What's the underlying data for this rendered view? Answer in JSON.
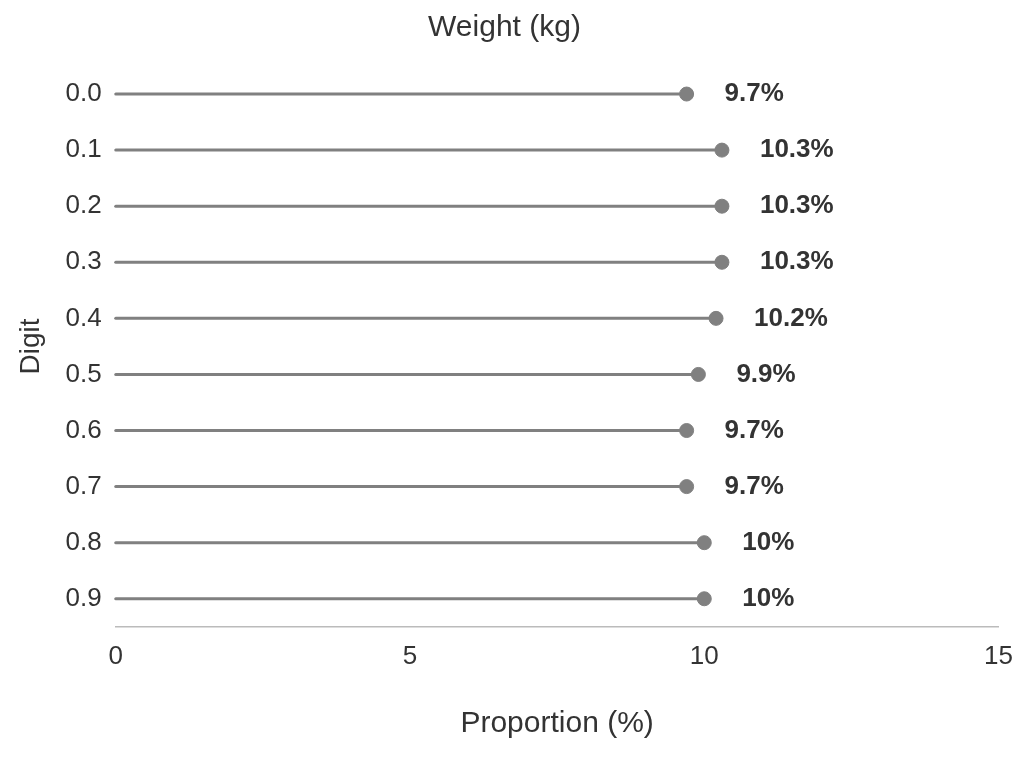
{
  "chart_data": {
    "type": "lollipop",
    "orientation": "horizontal",
    "title": "Weight (kg)",
    "xlabel": "Proportion (%)",
    "ylabel": "Digit",
    "categories": [
      "0.0",
      "0.1",
      "0.2",
      "0.3",
      "0.4",
      "0.5",
      "0.6",
      "0.7",
      "0.8",
      "0.9"
    ],
    "values": [
      9.7,
      10.3,
      10.3,
      10.3,
      10.2,
      9.9,
      9.7,
      9.7,
      10,
      10
    ],
    "value_labels": [
      "9.7%",
      "10.3%",
      "10.3%",
      "10.3%",
      "10.2%",
      "9.9%",
      "9.7%",
      "9.7%",
      "10%",
      "10%"
    ],
    "color": "#808080",
    "marker": "circle",
    "xlim": [
      0,
      15
    ],
    "xticks": [
      0,
      5,
      10,
      15
    ],
    "grid": false,
    "legend": false
  }
}
